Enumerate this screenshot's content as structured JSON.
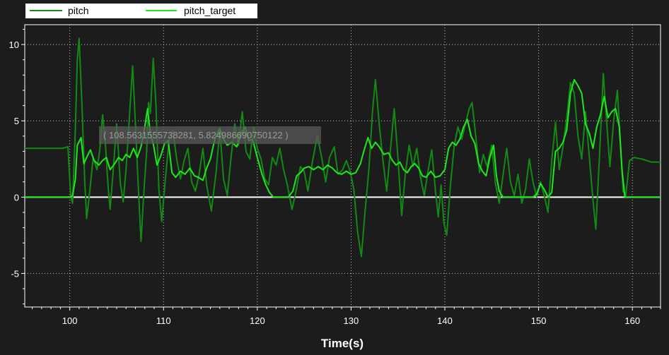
{
  "colors": {
    "background": "#1c1c1c",
    "plot_border": "#ffffff",
    "grid": "#c8c8c8",
    "axis_text": "#ffffff",
    "zero_line": "#ffffff",
    "pitch": "#138a13",
    "pitch_target": "#1ee81e",
    "legend_bg": "#ffffff",
    "legend_text": "#000000",
    "tooltip_bg": "#5a5a5a",
    "tooltip_text": "#9a9a9a"
  },
  "legend": {
    "items": [
      {
        "label": "pitch",
        "color": "#138a13"
      },
      {
        "label": "pitch_target",
        "color": "#1ee81e"
      }
    ],
    "placement": "top-left"
  },
  "tooltip": {
    "text": "( 108.5631555738281, 5.824986690750122 )"
  },
  "chart_data": {
    "type": "line",
    "title": "",
    "xlabel": "Time(s)",
    "ylabel": "",
    "xlim": [
      95.2,
      163
    ],
    "ylim": [
      -7.2,
      11.3
    ],
    "x_ticks": [
      100,
      110,
      120,
      130,
      140,
      150,
      160
    ],
    "y_ticks": [
      -5,
      0,
      5,
      10
    ],
    "grid": true,
    "series": [
      {
        "name": "pitch",
        "color": "#138a13",
        "points": [
          [
            95.2,
            3.2
          ],
          [
            98.0,
            3.2
          ],
          [
            99.2,
            3.2
          ],
          [
            99.8,
            3.3
          ],
          [
            100.1,
            0.1
          ],
          [
            100.3,
            -0.4
          ],
          [
            100.6,
            4.5
          ],
          [
            100.8,
            9.0
          ],
          [
            101.0,
            10.4
          ],
          [
            101.3,
            6.0
          ],
          [
            101.6,
            1.0
          ],
          [
            101.8,
            -1.4
          ],
          [
            102.1,
            0.2
          ],
          [
            102.5,
            2.6
          ],
          [
            102.9,
            1.8
          ],
          [
            103.2,
            3.1
          ],
          [
            103.5,
            5.4
          ],
          [
            103.8,
            3.5
          ],
          [
            104.1,
            0.6
          ],
          [
            104.3,
            -0.8
          ],
          [
            104.7,
            2.3
          ],
          [
            105.0,
            4.8
          ],
          [
            105.4,
            0.9
          ],
          [
            105.7,
            -0.3
          ],
          [
            106.0,
            1.8
          ],
          [
            106.4,
            5.6
          ],
          [
            106.7,
            8.6
          ],
          [
            107.0,
            4.8
          ],
          [
            107.3,
            0.8
          ],
          [
            107.6,
            -2.9
          ],
          [
            107.9,
            0.3
          ],
          [
            108.2,
            3.0
          ],
          [
            108.4,
            6.2
          ],
          [
            108.6,
            5.5
          ],
          [
            108.9,
            9.1
          ],
          [
            109.2,
            6.0
          ],
          [
            109.5,
            0.6
          ],
          [
            109.8,
            -1.6
          ],
          [
            110.2,
            1.2
          ],
          [
            110.6,
            3.8
          ],
          [
            111.0,
            4.4
          ],
          [
            111.4,
            2.5
          ],
          [
            111.8,
            1.2
          ],
          [
            112.2,
            2.4
          ],
          [
            112.6,
            3.2
          ],
          [
            113.0,
            1.0
          ],
          [
            113.4,
            0.4
          ],
          [
            113.8,
            1.5
          ],
          [
            114.2,
            3.2
          ],
          [
            114.6,
            0.8
          ],
          [
            115.1,
            -0.9
          ],
          [
            115.6,
            1.6
          ],
          [
            116.0,
            4.4
          ],
          [
            116.4,
            1.2
          ],
          [
            116.8,
            0.1
          ],
          [
            117.2,
            2.6
          ],
          [
            117.6,
            4.8
          ],
          [
            118.0,
            3.4
          ],
          [
            118.4,
            5.6
          ],
          [
            118.8,
            3.0
          ],
          [
            119.2,
            2.5
          ],
          [
            119.6,
            4.6
          ],
          [
            120.0,
            3.2
          ],
          [
            120.4,
            2.5
          ],
          [
            120.8,
            1.2
          ],
          [
            121.2,
            0.8
          ],
          [
            121.6,
            2.6
          ],
          [
            122.0,
            2.1
          ],
          [
            122.4,
            3.2
          ],
          [
            122.8,
            1.8
          ],
          [
            123.2,
            0.8
          ],
          [
            123.7,
            -0.8
          ],
          [
            124.1,
            0.3
          ],
          [
            124.6,
            2.0
          ],
          [
            125.0,
            1.7
          ],
          [
            125.4,
            0.4
          ],
          [
            125.9,
            2.4
          ],
          [
            126.4,
            4.0
          ],
          [
            126.9,
            2.5
          ],
          [
            127.3,
            1.0
          ],
          [
            127.7,
            2.6
          ],
          [
            128.2,
            3.3
          ],
          [
            128.6,
            1.5
          ],
          [
            129.1,
            1.8
          ],
          [
            129.5,
            2.4
          ],
          [
            129.9,
            1.7
          ],
          [
            130.3,
            0.5
          ],
          [
            130.7,
            -2.3
          ],
          [
            131.1,
            -3.9
          ],
          [
            131.5,
            -0.9
          ],
          [
            131.9,
            1.8
          ],
          [
            132.3,
            5.7
          ],
          [
            132.6,
            7.7
          ],
          [
            133.0,
            4.8
          ],
          [
            133.4,
            2.4
          ],
          [
            133.8,
            0.4
          ],
          [
            134.2,
            3.1
          ],
          [
            134.6,
            5.8
          ],
          [
            135.0,
            2.6
          ],
          [
            135.4,
            -1.2
          ],
          [
            135.8,
            1.6
          ],
          [
            136.2,
            3.4
          ],
          [
            136.6,
            2.0
          ],
          [
            137.0,
            3.2
          ],
          [
            137.4,
            1.3
          ],
          [
            137.8,
            0.1
          ],
          [
            138.2,
            1.7
          ],
          [
            138.6,
            3.1
          ],
          [
            139.0,
            0.4
          ],
          [
            139.3,
            -1.3
          ],
          [
            139.6,
            0.8
          ],
          [
            139.9,
            -1.7
          ],
          [
            140.2,
            -2.5
          ],
          [
            140.6,
            0.8
          ],
          [
            141.0,
            3.4
          ],
          [
            141.4,
            4.6
          ],
          [
            141.8,
            3.8
          ],
          [
            142.2,
            4.8
          ],
          [
            142.6,
            5.8
          ],
          [
            142.9,
            6.2
          ],
          [
            143.3,
            4.0
          ],
          [
            143.7,
            1.6
          ],
          [
            144.1,
            2.8
          ],
          [
            144.5,
            2.0
          ],
          [
            145.0,
            3.4
          ],
          [
            145.4,
            0.9
          ],
          [
            145.8,
            -0.4
          ],
          [
            146.2,
            1.4
          ],
          [
            146.6,
            3.2
          ],
          [
            147.0,
            1.0
          ],
          [
            147.4,
            0.1
          ],
          [
            147.8,
            1.5
          ],
          [
            148.2,
            -0.4
          ],
          [
            148.6,
            0.5
          ],
          [
            149.0,
            2.5
          ],
          [
            149.4,
            1.0
          ],
          [
            149.8,
            0.0
          ],
          [
            150.2,
            1.0
          ],
          [
            150.6,
            0.1
          ],
          [
            151.0,
            -1.0
          ],
          [
            151.4,
            2.4
          ],
          [
            151.8,
            4.9
          ],
          [
            152.2,
            1.8
          ],
          [
            152.6,
            3.3
          ],
          [
            153.0,
            5.2
          ],
          [
            153.4,
            7.5
          ],
          [
            153.8,
            6.8
          ],
          [
            154.2,
            4.0
          ],
          [
            154.6,
            2.5
          ],
          [
            155.0,
            5.6
          ],
          [
            155.4,
            2.7
          ],
          [
            155.8,
            -0.2
          ],
          [
            156.1,
            -2.1
          ],
          [
            156.5,
            2.8
          ],
          [
            156.9,
            8.1
          ],
          [
            157.2,
            5.4
          ],
          [
            157.6,
            2.0
          ],
          [
            158.0,
            5.0
          ],
          [
            158.4,
            7.0
          ],
          [
            158.7,
            3.8
          ],
          [
            159.0,
            0.4
          ],
          [
            159.3,
            0.1
          ],
          [
            159.7,
            2.4
          ],
          [
            160.2,
            2.6
          ],
          [
            161.0,
            2.5
          ],
          [
            162.0,
            2.3
          ],
          [
            163.0,
            2.3
          ]
        ]
      },
      {
        "name": "pitch_target",
        "color": "#1ee81e",
        "points": [
          [
            95.2,
            0.0
          ],
          [
            100.0,
            0.0
          ],
          [
            100.3,
            0.1
          ],
          [
            100.6,
            1.2
          ],
          [
            100.8,
            3.4
          ],
          [
            101.2,
            3.9
          ],
          [
            101.5,
            2.2
          ],
          [
            101.8,
            2.6
          ],
          [
            102.2,
            3.1
          ],
          [
            102.6,
            2.4
          ],
          [
            103.1,
            2.1
          ],
          [
            103.5,
            2.4
          ],
          [
            103.9,
            2.6
          ],
          [
            104.3,
            1.8
          ],
          [
            104.8,
            2.2
          ],
          [
            105.2,
            2.6
          ],
          [
            105.6,
            2.4
          ],
          [
            106.0,
            2.8
          ],
          [
            106.4,
            2.6
          ],
          [
            106.8,
            3.2
          ],
          [
            107.2,
            2.6
          ],
          [
            107.6,
            3.3
          ],
          [
            108.0,
            4.6
          ],
          [
            108.3,
            5.8
          ],
          [
            108.6,
            4.1
          ],
          [
            108.9,
            3.5
          ],
          [
            109.3,
            2.1
          ],
          [
            109.7,
            2.7
          ],
          [
            110.1,
            3.5
          ],
          [
            110.5,
            3.7
          ],
          [
            110.9,
            1.6
          ],
          [
            111.3,
            1.3
          ],
          [
            111.8,
            1.7
          ],
          [
            112.3,
            1.5
          ],
          [
            112.8,
            1.9
          ],
          [
            113.3,
            1.4
          ],
          [
            113.7,
            1.3
          ],
          [
            114.2,
            1.1
          ],
          [
            114.6,
            1.9
          ],
          [
            115.0,
            2.5
          ],
          [
            115.5,
            3.9
          ],
          [
            116.0,
            4.5
          ],
          [
            116.4,
            3.8
          ],
          [
            116.8,
            3.4
          ],
          [
            117.3,
            3.6
          ],
          [
            117.8,
            3.3
          ],
          [
            118.3,
            4.2
          ],
          [
            118.7,
            4.6
          ],
          [
            119.1,
            3.7
          ],
          [
            119.5,
            3.8
          ],
          [
            120.0,
            2.6
          ],
          [
            120.5,
            1.5
          ],
          [
            120.9,
            0.8
          ],
          [
            121.3,
            0.3
          ],
          [
            121.7,
            0.0
          ],
          [
            123.3,
            0.0
          ],
          [
            123.8,
            0.4
          ],
          [
            124.2,
            1.4
          ],
          [
            124.6,
            1.6
          ],
          [
            125.0,
            1.9
          ],
          [
            125.5,
            2.0
          ],
          [
            126.0,
            1.8
          ],
          [
            126.5,
            2.0
          ],
          [
            127.0,
            1.8
          ],
          [
            127.5,
            2.1
          ],
          [
            128.0,
            1.9
          ],
          [
            128.5,
            1.6
          ],
          [
            129.0,
            1.5
          ],
          [
            129.5,
            1.7
          ],
          [
            130.0,
            1.5
          ],
          [
            130.5,
            1.6
          ],
          [
            131.0,
            2.2
          ],
          [
            131.4,
            3.1
          ],
          [
            131.8,
            3.9
          ],
          [
            132.2,
            3.2
          ],
          [
            132.6,
            3.6
          ],
          [
            133.0,
            3.3
          ],
          [
            133.5,
            2.8
          ],
          [
            134.0,
            2.9
          ],
          [
            134.4,
            2.4
          ],
          [
            134.8,
            2.1
          ],
          [
            135.2,
            2.3
          ],
          [
            135.6,
            1.8
          ],
          [
            136.0,
            1.6
          ],
          [
            136.4,
            2.0
          ],
          [
            136.8,
            2.2
          ],
          [
            137.2,
            1.9
          ],
          [
            137.6,
            1.4
          ],
          [
            138.0,
            1.3
          ],
          [
            138.5,
            1.7
          ],
          [
            139.0,
            1.3
          ],
          [
            139.5,
            1.4
          ],
          [
            140.0,
            1.8
          ],
          [
            140.4,
            3.2
          ],
          [
            140.8,
            3.6
          ],
          [
            141.2,
            3.4
          ],
          [
            141.6,
            3.8
          ],
          [
            142.0,
            4.6
          ],
          [
            142.4,
            5.1
          ],
          [
            142.8,
            4.0
          ],
          [
            143.2,
            3.5
          ],
          [
            143.6,
            2.2
          ],
          [
            144.0,
            1.7
          ],
          [
            144.4,
            1.4
          ],
          [
            144.8,
            2.6
          ],
          [
            145.2,
            3.4
          ],
          [
            145.5,
            1.4
          ],
          [
            145.8,
            0.4
          ],
          [
            146.2,
            0.0
          ],
          [
            149.4,
            0.0
          ],
          [
            149.8,
            0.2
          ],
          [
            150.2,
            0.9
          ],
          [
            150.6,
            0.5
          ],
          [
            151.0,
            0.0
          ],
          [
            151.4,
            0.3
          ],
          [
            151.8,
            3.0
          ],
          [
            152.2,
            3.2
          ],
          [
            152.6,
            3.6
          ],
          [
            153.0,
            4.4
          ],
          [
            153.4,
            6.8
          ],
          [
            153.8,
            7.7
          ],
          [
            154.2,
            7.3
          ],
          [
            154.6,
            6.8
          ],
          [
            155.0,
            4.8
          ],
          [
            155.4,
            4.2
          ],
          [
            155.8,
            3.2
          ],
          [
            156.2,
            4.6
          ],
          [
            156.6,
            5.4
          ],
          [
            157.0,
            6.6
          ],
          [
            157.4,
            5.2
          ],
          [
            157.8,
            5.6
          ],
          [
            158.2,
            5.8
          ],
          [
            158.6,
            4.6
          ],
          [
            158.9,
            1.8
          ],
          [
            159.2,
            0.0
          ],
          [
            163.0,
            0.0
          ]
        ]
      }
    ]
  }
}
